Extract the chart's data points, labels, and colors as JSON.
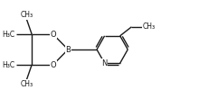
{
  "bg_color": "#ffffff",
  "line_color": "#1a1a1a",
  "line_width": 1.0,
  "font_size": 6.0,
  "font_family": "DejaVu Sans",
  "figsize": [
    2.2,
    1.1
  ],
  "dpi": 100,
  "xlim": [
    0,
    2.2
  ],
  "ylim": [
    0,
    1.1
  ]
}
